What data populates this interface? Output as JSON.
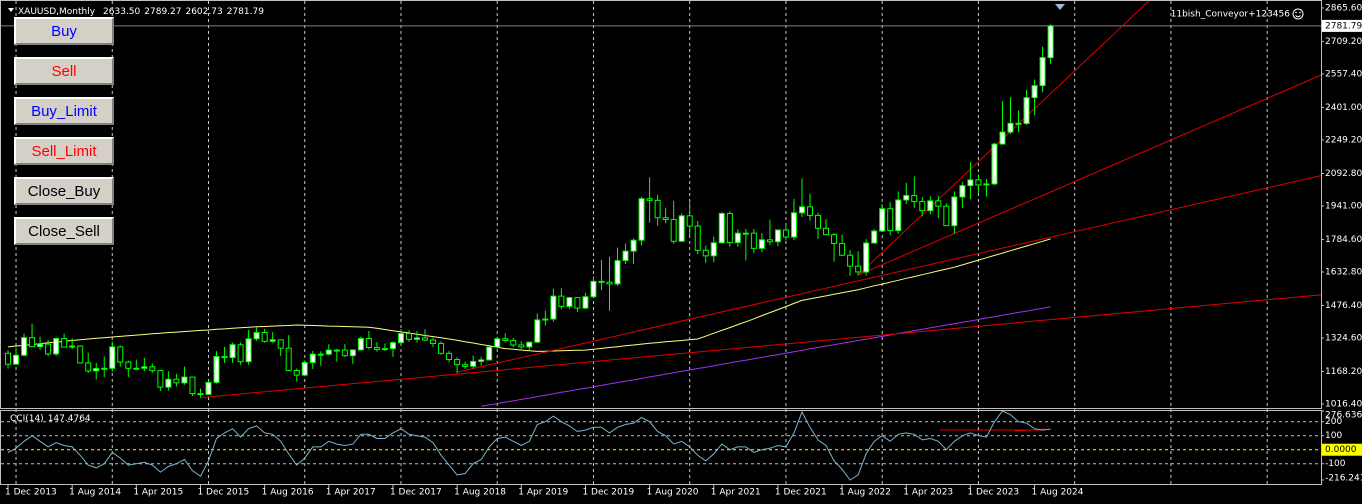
{
  "header": {
    "symbol": "XAUUSD,Monthly",
    "ohlc": [
      "2633.50",
      "2789.27",
      "2602.73",
      "2781.79"
    ],
    "account": "11bish_Conveyor+123456"
  },
  "buttons": [
    {
      "label": "Buy",
      "color": "#0000ff"
    },
    {
      "label": "Sell",
      "color": "#ff0000"
    },
    {
      "label": "Buy_Limit",
      "color": "#0000ff"
    },
    {
      "label": "Sell_Limit",
      "color": "#ff0000"
    },
    {
      "label": "Close_Buy",
      "color": "#000000"
    },
    {
      "label": "Close_Sell",
      "color": "#000000"
    }
  ],
  "chart_data": {
    "type": "candlestick",
    "categories": [
      "1 Dec 2013",
      null,
      null,
      null,
      null,
      null,
      null,
      null,
      "1 Aug 2014",
      null,
      null,
      null,
      null,
      null,
      null,
      null,
      "1 Apr 2015",
      null,
      null,
      null,
      null,
      null,
      null,
      null,
      "1 Dec 2015",
      null,
      null,
      null,
      null,
      null,
      null,
      null,
      "1 Aug 2016",
      null,
      null,
      null,
      null,
      null,
      null,
      null,
      "1 Apr 2017",
      null,
      null,
      null,
      null,
      null,
      null,
      null,
      "1 Dec 2017",
      null,
      null,
      null,
      null,
      null,
      null,
      null,
      "1 Aug 2018",
      null,
      null,
      null,
      null,
      null,
      null,
      null,
      "1 Apr 2019",
      null,
      null,
      null,
      null,
      null,
      null,
      null,
      "1 Dec 2019",
      null,
      null,
      null,
      null,
      null,
      null,
      null,
      "1 Aug 2020",
      null,
      null,
      null,
      null,
      null,
      null,
      null,
      "1 Apr 2021",
      null,
      null,
      null,
      null,
      null,
      null,
      null,
      "1 Dec 2021",
      null,
      null,
      null,
      null,
      null,
      null,
      null,
      "1 Aug 2022",
      null,
      null,
      null,
      null,
      null,
      null,
      null,
      "1 Apr 2023",
      null,
      null,
      null,
      null,
      null,
      null,
      null,
      "1 Dec 2023",
      null,
      null,
      null,
      null,
      null,
      null,
      null,
      "1 Aug 2024",
      null,
      null
    ],
    "candles": [
      [
        1253,
        1268,
        1182,
        1202
      ],
      [
        1202,
        1280,
        1202,
        1244
      ],
      [
        1244,
        1345,
        1238,
        1326
      ],
      [
        1326,
        1392,
        1284,
        1284
      ],
      [
        1284,
        1331,
        1268,
        1296
      ],
      [
        1296,
        1315,
        1240,
        1250
      ],
      [
        1250,
        1326,
        1240,
        1322
      ],
      [
        1322,
        1345,
        1283,
        1282
      ],
      [
        1282,
        1324,
        1272,
        1287
      ],
      [
        1287,
        1290,
        1206,
        1208
      ],
      [
        1208,
        1256,
        1161,
        1171
      ],
      [
        1171,
        1208,
        1131,
        1182
      ],
      [
        1182,
        1238,
        1142,
        1183
      ],
      [
        1183,
        1307,
        1167,
        1283
      ],
      [
        1283,
        1290,
        1191,
        1212
      ],
      [
        1212,
        1219,
        1142,
        1183
      ],
      [
        1183,
        1224,
        1178,
        1183
      ],
      [
        1183,
        1232,
        1170,
        1190
      ],
      [
        1190,
        1205,
        1162,
        1172
      ],
      [
        1172,
        1175,
        1077,
        1095
      ],
      [
        1095,
        1170,
        1080,
        1132
      ],
      [
        1132,
        1157,
        1098,
        1115
      ],
      [
        1115,
        1191,
        1106,
        1142
      ],
      [
        1142,
        1143,
        1053,
        1065
      ],
      [
        1065,
        1088,
        1046,
        1061
      ],
      [
        1061,
        1124,
        1061,
        1117
      ],
      [
        1117,
        1263,
        1111,
        1238
      ],
      [
        1238,
        1283,
        1208,
        1233
      ],
      [
        1233,
        1303,
        1208,
        1293
      ],
      [
        1293,
        1304,
        1199,
        1214
      ],
      [
        1214,
        1362,
        1199,
        1321
      ],
      [
        1321,
        1375,
        1311,
        1350
      ],
      [
        1350,
        1367,
        1302,
        1309
      ],
      [
        1309,
        1352,
        1302,
        1316
      ],
      [
        1316,
        1318,
        1241,
        1277
      ],
      [
        1277,
        1338,
        1171,
        1173
      ],
      [
        1173,
        1182,
        1122,
        1151
      ],
      [
        1151,
        1220,
        1146,
        1210
      ],
      [
        1210,
        1264,
        1180,
        1249
      ],
      [
        1249,
        1262,
        1195,
        1249
      ],
      [
        1249,
        1296,
        1243,
        1268
      ],
      [
        1268,
        1274,
        1214,
        1268
      ],
      [
        1268,
        1296,
        1236,
        1242
      ],
      [
        1242,
        1270,
        1204,
        1269
      ],
      [
        1269,
        1331,
        1267,
        1322
      ],
      [
        1322,
        1357,
        1272,
        1280
      ],
      [
        1280,
        1306,
        1261,
        1271
      ],
      [
        1271,
        1299,
        1264,
        1275
      ],
      [
        1275,
        1309,
        1236,
        1303
      ],
      [
        1303,
        1366,
        1302,
        1345
      ],
      [
        1345,
        1361,
        1307,
        1318
      ],
      [
        1318,
        1356,
        1303,
        1325
      ],
      [
        1325,
        1365,
        1310,
        1315
      ],
      [
        1315,
        1326,
        1282,
        1299
      ],
      [
        1299,
        1309,
        1246,
        1253
      ],
      [
        1253,
        1265,
        1211,
        1224
      ],
      [
        1224,
        1235,
        1160,
        1200
      ],
      [
        1200,
        1214,
        1180,
        1192
      ],
      [
        1192,
        1243,
        1182,
        1215
      ],
      [
        1215,
        1237,
        1196,
        1222
      ],
      [
        1222,
        1284,
        1221,
        1282
      ],
      [
        1282,
        1326,
        1276,
        1321
      ],
      [
        1321,
        1346,
        1303,
        1313
      ],
      [
        1313,
        1324,
        1281,
        1292
      ],
      [
        1292,
        1310,
        1266,
        1283
      ],
      [
        1283,
        1306,
        1267,
        1305
      ],
      [
        1305,
        1439,
        1301,
        1409
      ],
      [
        1409,
        1452,
        1382,
        1413
      ],
      [
        1413,
        1555,
        1400,
        1520
      ],
      [
        1520,
        1557,
        1459,
        1472
      ],
      [
        1472,
        1517,
        1459,
        1513
      ],
      [
        1513,
        1516,
        1445,
        1464
      ],
      [
        1464,
        1535,
        1459,
        1517
      ],
      [
        1517,
        1611,
        1517,
        1589
      ],
      [
        1589,
        1689,
        1548,
        1585
      ],
      [
        1585,
        1704,
        1451,
        1577
      ],
      [
        1577,
        1747,
        1567,
        1686
      ],
      [
        1686,
        1765,
        1670,
        1730
      ],
      [
        1730,
        1789,
        1670,
        1781
      ],
      [
        1781,
        1984,
        1757,
        1975
      ],
      [
        1975,
        2075,
        1863,
        1967
      ],
      [
        1967,
        1992,
        1849,
        1886
      ],
      [
        1886,
        1933,
        1860,
        1878
      ],
      [
        1878,
        1965,
        1764,
        1776
      ],
      [
        1776,
        1906,
        1775,
        1895
      ],
      [
        1895,
        1959,
        1802,
        1847
      ],
      [
        1847,
        1871,
        1717,
        1734
      ],
      [
        1734,
        1755,
        1676,
        1708
      ],
      [
        1708,
        1798,
        1678,
        1769
      ],
      [
        1769,
        1913,
        1766,
        1906
      ],
      [
        1906,
        1916,
        1750,
        1770
      ],
      [
        1770,
        1832,
        1750,
        1814
      ],
      [
        1814,
        1834,
        1687,
        1814
      ],
      [
        1814,
        1834,
        1721,
        1743
      ],
      [
        1743,
        1814,
        1726,
        1783
      ],
      [
        1783,
        1877,
        1758,
        1774
      ],
      [
        1774,
        1830,
        1753,
        1829
      ],
      [
        1829,
        1853,
        1780,
        1796
      ],
      [
        1796,
        1974,
        1781,
        1909
      ],
      [
        1909,
        2070,
        1890,
        1937
      ],
      [
        1937,
        1998,
        1872,
        1897
      ],
      [
        1897,
        1909,
        1787,
        1837
      ],
      [
        1837,
        1879,
        1805,
        1807
      ],
      [
        1807,
        1814,
        1681,
        1766
      ],
      [
        1766,
        1807,
        1709,
        1711
      ],
      [
        1711,
        1735,
        1615,
        1660
      ],
      [
        1660,
        1730,
        1617,
        1633
      ],
      [
        1633,
        1786,
        1616,
        1768
      ],
      [
        1768,
        1833,
        1765,
        1824
      ],
      [
        1824,
        1949,
        1823,
        1928
      ],
      [
        1928,
        1959,
        1805,
        1826
      ],
      [
        1826,
        2009,
        1810,
        1969
      ],
      [
        1969,
        2049,
        1950,
        1990
      ],
      [
        1990,
        2079,
        1932,
        1962
      ],
      [
        1962,
        1983,
        1893,
        1919
      ],
      [
        1919,
        1987,
        1902,
        1965
      ],
      [
        1965,
        1987,
        1884,
        1940
      ],
      [
        1940,
        1953,
        1847,
        1849
      ],
      [
        1849,
        2009,
        1810,
        1983
      ],
      [
        1983,
        2052,
        1931,
        2036
      ],
      [
        2036,
        2146,
        1973,
        2063
      ],
      [
        2063,
        2088,
        2002,
        2039
      ],
      [
        2039,
        2066,
        1984,
        2044
      ],
      [
        2044,
        2236,
        2038,
        2230
      ],
      [
        2230,
        2431,
        2228,
        2286
      ],
      [
        2286,
        2450,
        2277,
        2327
      ],
      [
        2327,
        2387,
        2286,
        2326
      ],
      [
        2326,
        2483,
        2319,
        2447
      ],
      [
        2447,
        2531,
        2364,
        2503
      ],
      [
        2503,
        2685,
        2472,
        2634
      ],
      [
        2633.5,
        2789.27,
        2602.73,
        2781.79
      ]
    ],
    "up_color": "#ffffff",
    "down_color": "#000000",
    "outline_color": "#00ff00",
    "ylim": [
      1002.3,
      2884
    ],
    "yticks": [
      {
        "value": 2865.6,
        "label": "2865.60"
      },
      {
        "value": 2709.2,
        "label": "2709.20"
      },
      {
        "value": 2557.4,
        "label": "2557.40"
      },
      {
        "value": 2401,
        "label": "2401.00"
      },
      {
        "value": 2249.2,
        "label": "2249.20"
      },
      {
        "value": 2092.8,
        "label": "2092.80"
      },
      {
        "value": 1941,
        "label": "1941.00"
      },
      {
        "value": 1784.6,
        "label": "1784.60"
      },
      {
        "value": 1632.8,
        "label": "1632.80"
      },
      {
        "value": 1476.4,
        "label": "1476.40"
      },
      {
        "value": 1324.6,
        "label": "1324.60"
      },
      {
        "value": 1168.2,
        "label": "1168.20"
      },
      {
        "value": 1016.4,
        "label": "1016.40"
      }
    ],
    "overlays": [
      {
        "color": "#ffff80",
        "values": [
          1283,
          1287,
          1290,
          1294,
          1298,
          1302,
          1305,
          1309,
          1313,
          1316,
          1320,
          1323,
          1326,
          1329,
          1332,
          1335,
          1338,
          1341,
          1344,
          1347,
          1350,
          1352,
          1355,
          1357,
          1360,
          1362,
          1365,
          1367,
          1370,
          1372,
          1375,
          1377,
          1378,
          1380,
          1382,
          1383,
          1385,
          1384,
          1383,
          1382,
          1380,
          1379,
          1378,
          1377,
          1376,
          1375,
          1370,
          1364,
          1358,
          1353,
          1348,
          1342,
          1336,
          1331,
          1326,
          1320,
          1314,
          1307,
          1301,
          1294,
          1288,
          1281,
          1275,
          1272,
          1268,
          1265,
          1262,
          1263,
          1264,
          1265,
          1266,
          1267,
          1268,
          1272,
          1276,
          1280,
          1284,
          1288,
          1292,
          1296,
          1300,
          1303,
          1307,
          1310,
          1313,
          1317,
          1320,
          1333,
          1347,
          1360,
          1373,
          1387,
          1400,
          1414,
          1429,
          1443,
          1457,
          1471,
          1486,
          1500,
          1507,
          1514,
          1521,
          1529,
          1536,
          1543,
          1550,
          1559,
          1568,
          1576,
          1585,
          1594,
          1603,
          1611,
          1620,
          1629,
          1638,
          1646,
          1655,
          1666,
          1677,
          1688,
          1699,
          1710,
          1721,
          1732,
          1743,
          1754,
          1765,
          1776,
          1787
        ]
      },
      {
        "color": "#a030f0",
        "values": [
          null,
          null,
          null,
          null,
          null,
          null,
          null,
          null,
          null,
          null,
          null,
          null,
          null,
          null,
          null,
          null,
          null,
          null,
          null,
          null,
          null,
          null,
          null,
          null,
          null,
          null,
          null,
          null,
          null,
          null,
          null,
          null,
          null,
          null,
          null,
          null,
          null,
          null,
          null,
          null,
          null,
          null,
          null,
          null,
          null,
          null,
          null,
          null,
          null,
          null,
          null,
          null,
          null,
          null,
          null,
          null,
          null,
          null,
          null,
          1005,
          1012,
          1018,
          1025,
          1031,
          1038,
          1044,
          1051,
          1057,
          1064,
          1071,
          1077,
          1084,
          1090,
          1097,
          1103,
          1110,
          1116,
          1123,
          1129,
          1136,
          1143,
          1149,
          1156,
          1162,
          1169,
          1175,
          1182,
          1188,
          1195,
          1202,
          1208,
          1215,
          1221,
          1228,
          1234,
          1241,
          1247,
          1254,
          1260,
          1267,
          1274,
          1280,
          1287,
          1293,
          1300,
          1306,
          1313,
          1319,
          1326,
          1332,
          1339,
          1346,
          1352,
          1359,
          1365,
          1372,
          1378,
          1385,
          1391,
          1398,
          1404,
          1411,
          1418,
          1424,
          1431,
          1437,
          1444,
          1450,
          1457,
          1463,
          1470
        ]
      }
    ],
    "trendlines": [
      {
        "x": [
          24,
          118
        ],
        "y": [
          1046,
          1369
        ]
      },
      {
        "x": [
          56,
          106
        ],
        "y": [
          1165,
          1591
        ]
      },
      {
        "x": [
          106,
          128
        ],
        "y": [
          1618,
          1974
        ]
      },
      {
        "x": [
          106,
          128
        ],
        "y": [
          1618,
          2395
        ]
      }
    ],
    "trend_color": "#e00000",
    "cci": {
      "name": "CCI(14)",
      "color": "#78b4cc",
      "values": [
        -20,
        10,
        60,
        100,
        60,
        20,
        50,
        30,
        20,
        -40,
        -110,
        -130,
        -100,
        -20,
        -60,
        -110,
        -100,
        -90,
        -110,
        -160,
        -120,
        -100,
        -70,
        -150,
        -190,
        -80,
        80,
        120,
        150,
        90,
        150,
        170,
        120,
        110,
        60,
        -30,
        -110,
        -60,
        20,
        20,
        60,
        40,
        30,
        40,
        110,
        110,
        80,
        80,
        120,
        150,
        110,
        100,
        90,
        50,
        -40,
        -110,
        -180,
        -170,
        -100,
        -70,
        20,
        80,
        90,
        60,
        30,
        60,
        180,
        200,
        240,
        200,
        170,
        130,
        140,
        160,
        160,
        120,
        160,
        180,
        190,
        230,
        200,
        130,
        100,
        40,
        60,
        20,
        -40,
        -80,
        -30,
        40,
        0,
        20,
        20,
        -20,
        0,
        10,
        30,
        20,
        120,
        270,
        160,
        70,
        30,
        -80,
        -140,
        -216.241,
        -180,
        -30,
        60,
        100,
        60,
        110,
        120,
        110,
        70,
        80,
        60,
        0,
        60,
        100,
        120,
        100,
        90,
        200,
        276.636,
        250,
        200,
        190,
        150,
        140,
        147.4764
      ],
      "ylim": [
        -216.241,
        276.636
      ],
      "yticks": [
        276.636,
        200,
        100,
        {
          "value": 0,
          "label": "0.0000"
        },
        -100,
        -216.241
      ]
    }
  }
}
